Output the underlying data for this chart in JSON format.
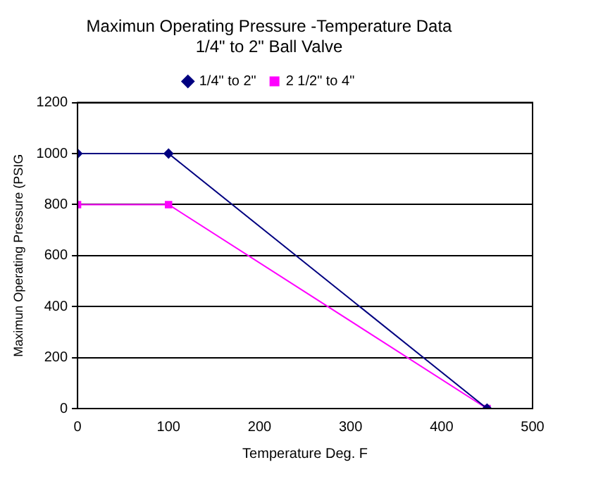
{
  "chart_data": {
    "type": "line",
    "title": [
      "Maximun Operating Pressure -Temperature Data",
      "1/4\" to 2\" Ball Valve"
    ],
    "xlabel": "Temperature Deg. F",
    "ylabel": "Maximun Operating Pressure (PSIG",
    "xlim": [
      0,
      500
    ],
    "xticks": [
      0,
      100,
      200,
      300,
      400,
      500
    ],
    "ylim": [
      0,
      1200
    ],
    "yticks": [
      0,
      200,
      400,
      600,
      800,
      1000,
      1200
    ],
    "grid": "y",
    "legend": "top",
    "series": [
      {
        "name": "1/4\" to 2\"",
        "color": "#000080",
        "marker": "diamond",
        "x": [
          0,
          100,
          450
        ],
        "values": [
          1000,
          1000,
          0
        ]
      },
      {
        "name": "2 1/2\" to 4\"",
        "color": "#ff00ff",
        "marker": "square",
        "x": [
          0,
          100,
          450
        ],
        "values": [
          800,
          800,
          0
        ]
      }
    ]
  }
}
